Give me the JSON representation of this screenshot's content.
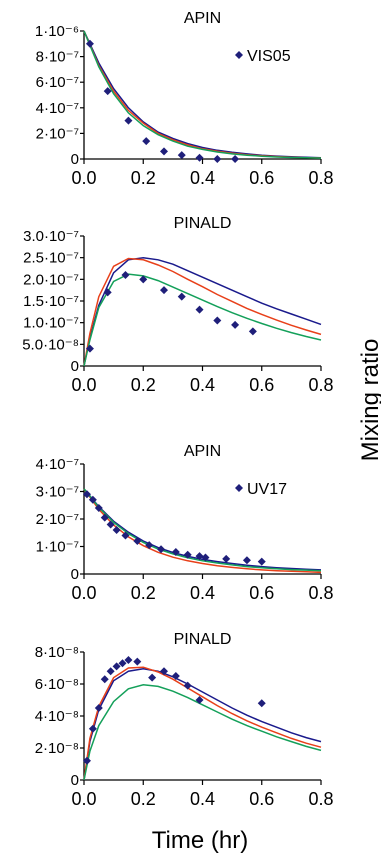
{
  "figure": {
    "xlabel": "Time (hr)",
    "ylabel": "Mixing ratio"
  },
  "chart_data": [
    {
      "type": "scatter",
      "title": "APIN",
      "legend_label": "VIS05",
      "legend_position": "top-right",
      "xlabel": "Time (hr)",
      "ylabel": "Mixing ratio",
      "xlim": [
        0,
        0.8
      ],
      "ylim": [
        0,
        1e-06
      ],
      "xticks": [
        0,
        0.2,
        0.4,
        0.6,
        0.8
      ],
      "xtick_labels": [
        "0.0",
        "0.2",
        "0.4",
        "0.6",
        "0.8"
      ],
      "yticks": [
        0,
        2e-07,
        4e-07,
        6e-07,
        8e-07,
        1e-06
      ],
      "ytick_labels": [
        "0",
        "2·10⁻⁷",
        "4·10⁻⁷",
        "6·10⁻⁷",
        "8·10⁻⁷",
        "1·10⁻⁶"
      ],
      "grid": false,
      "points": {
        "x": [
          0.02,
          0.08,
          0.15,
          0.21,
          0.27,
          0.33,
          0.39,
          0.45,
          0.51
        ],
        "y": [
          9e-07,
          5.3e-07,
          3e-07,
          1.4e-07,
          6e-08,
          3e-08,
          1e-08,
          0.0,
          0.0
        ]
      },
      "marker_color": "#1f1f7a",
      "series": [
        {
          "color": "#1a1a8c",
          "x": [
            0,
            0.05,
            0.1,
            0.15,
            0.2,
            0.25,
            0.3,
            0.35,
            0.4,
            0.45,
            0.5,
            0.55,
            0.6,
            0.65,
            0.7,
            0.75,
            0.8
          ],
          "y": [
            1e-06,
            7.5e-07,
            5.5e-07,
            4e-07,
            2.9e-07,
            2.1e-07,
            1.6e-07,
            1.2e-07,
            9e-08,
            6.8e-08,
            5.2e-08,
            4e-08,
            3e-08,
            2.3e-08,
            1.8e-08,
            1.3e-08,
            1e-08
          ]
        },
        {
          "color": "#e8401a",
          "x": [
            0,
            0.05,
            0.1,
            0.15,
            0.2,
            0.25,
            0.3,
            0.35,
            0.4,
            0.45,
            0.5,
            0.55,
            0.6,
            0.65,
            0.7,
            0.75,
            0.8
          ],
          "y": [
            1e-06,
            7.3e-07,
            5.3e-07,
            3.8e-07,
            2.8e-07,
            2e-07,
            1.5e-07,
            1.1e-07,
            8e-08,
            6e-08,
            4.5e-08,
            3.3e-08,
            2.5e-08,
            1.9e-08,
            1.4e-08,
            1e-08,
            8e-09
          ]
        },
        {
          "color": "#14a05a",
          "x": [
            0,
            0.05,
            0.1,
            0.15,
            0.2,
            0.25,
            0.3,
            0.35,
            0.4,
            0.45,
            0.5,
            0.55,
            0.6,
            0.65,
            0.7,
            0.75,
            0.8
          ],
          "y": [
            1e-06,
            7.2e-07,
            5.1e-07,
            3.6e-07,
            2.6e-07,
            1.9e-07,
            1.4e-07,
            1e-07,
            7.5e-08,
            5.5e-08,
            4e-08,
            3e-08,
            2.2e-08,
            1.6e-08,
            1.2e-08,
            9e-09,
            7e-09
          ]
        }
      ]
    },
    {
      "type": "scatter",
      "title": "PINALD",
      "legend_label": "",
      "xlabel": "Time (hr)",
      "ylabel": "Mixing ratio",
      "xlim": [
        0,
        0.8
      ],
      "ylim": [
        0,
        3e-07
      ],
      "xticks": [
        0,
        0.2,
        0.4,
        0.6,
        0.8
      ],
      "xtick_labels": [
        "0.0",
        "0.2",
        "0.4",
        "0.6",
        "0.8"
      ],
      "yticks": [
        0,
        5e-08,
        1e-07,
        1.5e-07,
        2e-07,
        2.5e-07,
        3e-07
      ],
      "ytick_labels": [
        "0",
        "5.0·10⁻⁸",
        "1.0·10⁻⁷",
        "1.5·10⁻⁷",
        "2.0·10⁻⁷",
        "2.5·10⁻⁷",
        "3.0·10⁻⁷"
      ],
      "grid": false,
      "points": {
        "x": [
          0.02,
          0.08,
          0.14,
          0.2,
          0.27,
          0.33,
          0.39,
          0.45,
          0.51,
          0.57
        ],
        "y": [
          4e-08,
          1.7e-07,
          2.1e-07,
          2e-07,
          1.75e-07,
          1.6e-07,
          1.3e-07,
          1.05e-07,
          9.5e-08,
          8e-08
        ]
      },
      "marker_color": "#1f1f7a",
      "series": [
        {
          "color": "#1a1a8c",
          "x": [
            0,
            0.02,
            0.05,
            0.1,
            0.15,
            0.2,
            0.25,
            0.3,
            0.35,
            0.4,
            0.45,
            0.5,
            0.55,
            0.6,
            0.65,
            0.7,
            0.75,
            0.8
          ],
          "y": [
            0,
            6.5e-08,
            1.4e-07,
            2.15e-07,
            2.45e-07,
            2.5e-07,
            2.45e-07,
            2.35e-07,
            2.2e-07,
            2.05e-07,
            1.9e-07,
            1.75e-07,
            1.6e-07,
            1.45e-07,
            1.32e-07,
            1.2e-07,
            1.08e-07,
            9.6e-08
          ]
        },
        {
          "color": "#e8401a",
          "x": [
            0,
            0.02,
            0.05,
            0.1,
            0.15,
            0.2,
            0.25,
            0.3,
            0.35,
            0.4,
            0.45,
            0.5,
            0.55,
            0.6,
            0.65,
            0.7,
            0.75,
            0.8
          ],
          "y": [
            0,
            7.5e-08,
            1.6e-07,
            2.3e-07,
            2.48e-07,
            2.45e-07,
            2.33e-07,
            2.18e-07,
            2e-07,
            1.83e-07,
            1.65e-07,
            1.49e-07,
            1.33e-07,
            1.19e-07,
            1.06e-07,
            9.4e-08,
            8.3e-08,
            7.3e-08
          ]
        },
        {
          "color": "#14a05a",
          "x": [
            0,
            0.02,
            0.05,
            0.1,
            0.15,
            0.2,
            0.25,
            0.3,
            0.35,
            0.4,
            0.45,
            0.5,
            0.55,
            0.6,
            0.65,
            0.7,
            0.75,
            0.8
          ],
          "y": [
            0,
            6e-08,
            1.35e-07,
            1.95e-07,
            2.12e-07,
            2.08e-07,
            1.97e-07,
            1.82e-07,
            1.67e-07,
            1.52e-07,
            1.37e-07,
            1.23e-07,
            1.1e-07,
            9.8e-08,
            8.7e-08,
            7.7e-08,
            6.8e-08,
            6e-08
          ]
        }
      ]
    },
    {
      "type": "scatter",
      "title": "APIN",
      "legend_label": "UV17",
      "legend_position": "top-right",
      "xlabel": "Time (hr)",
      "ylabel": "Mixing ratio",
      "xlim": [
        0,
        0.8
      ],
      "ylim": [
        0,
        4e-07
      ],
      "xticks": [
        0,
        0.2,
        0.4,
        0.6,
        0.8
      ],
      "xtick_labels": [
        "0.0",
        "0.2",
        "0.4",
        "0.6",
        "0.8"
      ],
      "yticks": [
        0,
        1e-07,
        2e-07,
        3e-07,
        4e-07
      ],
      "ytick_labels": [
        "0",
        "1·10⁻⁷",
        "2·10⁻⁷",
        "3·10⁻⁷",
        "4·10⁻⁷"
      ],
      "grid": false,
      "points": {
        "x": [
          0.01,
          0.03,
          0.05,
          0.07,
          0.09,
          0.11,
          0.14,
          0.18,
          0.22,
          0.26,
          0.31,
          0.35,
          0.39,
          0.41,
          0.48,
          0.55,
          0.6
        ],
        "y": [
          2.9e-07,
          2.7e-07,
          2.4e-07,
          2.05e-07,
          1.8e-07,
          1.6e-07,
          1.4e-07,
          1.2e-07,
          1.05e-07,
          9e-08,
          8e-08,
          7e-08,
          6.5e-08,
          6e-08,
          5.5e-08,
          5e-08,
          4.5e-08
        ]
      },
      "marker_color": "#1f1f7a",
      "series": [
        {
          "color": "#1a1a8c",
          "x": [
            0,
            0.05,
            0.1,
            0.15,
            0.2,
            0.25,
            0.3,
            0.35,
            0.4,
            0.45,
            0.5,
            0.55,
            0.6,
            0.65,
            0.7,
            0.75,
            0.8
          ],
          "y": [
            3.1e-07,
            2.45e-07,
            1.92e-07,
            1.52e-07,
            1.2e-07,
            9.6e-08,
            7.8e-08,
            6.4e-08,
            5.3e-08,
            4.5e-08,
            3.8e-08,
            3.2e-08,
            2.7e-08,
            2.3e-08,
            2e-08,
            1.7e-08,
            1.5e-08
          ]
        },
        {
          "color": "#e8401a",
          "x": [
            0,
            0.05,
            0.1,
            0.15,
            0.2,
            0.25,
            0.3,
            0.35,
            0.4,
            0.45,
            0.5,
            0.55,
            0.6,
            0.65,
            0.7,
            0.75,
            0.8
          ],
          "y": [
            3.1e-07,
            2.35e-07,
            1.78e-07,
            1.35e-07,
            1.03e-07,
            7.9e-08,
            6.1e-08,
            4.8e-08,
            3.8e-08,
            3e-08,
            2.4e-08,
            1.9e-08,
            1.5e-08,
            1.2e-08,
            1e-08,
            8e-09,
            6e-09
          ]
        },
        {
          "color": "#14a05a",
          "x": [
            0,
            0.05,
            0.1,
            0.15,
            0.2,
            0.25,
            0.3,
            0.35,
            0.4,
            0.45,
            0.5,
            0.55,
            0.6,
            0.65,
            0.7,
            0.75,
            0.8
          ],
          "y": [
            3.1e-07,
            2.42e-07,
            1.88e-07,
            1.47e-07,
            1.15e-07,
            9.1e-08,
            7.3e-08,
            5.9e-08,
            4.8e-08,
            4e-08,
            3.3e-08,
            2.7e-08,
            2.3e-08,
            1.9e-08,
            1.6e-08,
            1.4e-08,
            1.2e-08
          ]
        }
      ]
    },
    {
      "type": "scatter",
      "title": "PINALD",
      "legend_label": "",
      "xlabel": "Time (hr)",
      "ylabel": "Mixing ratio",
      "xlim": [
        0,
        0.8
      ],
      "ylim": [
        0,
        8e-08
      ],
      "xticks": [
        0,
        0.2,
        0.4,
        0.6,
        0.8
      ],
      "xtick_labels": [
        "0.0",
        "0.2",
        "0.4",
        "0.6",
        "0.8"
      ],
      "yticks": [
        0,
        2e-08,
        4e-08,
        6e-08,
        8e-08
      ],
      "ytick_labels": [
        "0",
        "2·10⁻⁸",
        "4·10⁻⁸",
        "6·10⁻⁸",
        "8·10⁻⁸"
      ],
      "grid": false,
      "points": {
        "x": [
          0.01,
          0.03,
          0.05,
          0.07,
          0.09,
          0.11,
          0.13,
          0.15,
          0.18,
          0.23,
          0.27,
          0.31,
          0.35,
          0.39,
          0.6
        ],
        "y": [
          1.2e-08,
          3.2e-08,
          4.5e-08,
          6.3e-08,
          6.8e-08,
          7.1e-08,
          7.3e-08,
          7.5e-08,
          7.4e-08,
          6.4e-08,
          6.8e-08,
          6.5e-08,
          5.9e-08,
          5e-08,
          4.8e-08
        ]
      },
      "marker_color": "#1f1f7a",
      "series": [
        {
          "color": "#1a1a8c",
          "x": [
            0,
            0.02,
            0.05,
            0.1,
            0.15,
            0.2,
            0.25,
            0.3,
            0.35,
            0.4,
            0.45,
            0.5,
            0.55,
            0.6,
            0.65,
            0.7,
            0.75,
            0.8
          ],
          "y": [
            0,
            2.4e-08,
            4.4e-08,
            6.2e-08,
            6.8e-08,
            6.95e-08,
            6.8e-08,
            6.45e-08,
            6e-08,
            5.5e-08,
            5e-08,
            4.5e-08,
            4.05e-08,
            3.65e-08,
            3.3e-08,
            2.95e-08,
            2.65e-08,
            2.4e-08
          ]
        },
        {
          "color": "#e8401a",
          "x": [
            0,
            0.02,
            0.05,
            0.1,
            0.15,
            0.2,
            0.25,
            0.3,
            0.35,
            0.4,
            0.45,
            0.5,
            0.55,
            0.6,
            0.65,
            0.7,
            0.75,
            0.8
          ],
          "y": [
            0,
            2.6e-08,
            4.6e-08,
            6.4e-08,
            7e-08,
            7.05e-08,
            6.75e-08,
            6.3e-08,
            5.75e-08,
            5.2e-08,
            4.65e-08,
            4.15e-08,
            3.7e-08,
            3.3e-08,
            2.95e-08,
            2.6e-08,
            2.3e-08,
            2.05e-08
          ]
        },
        {
          "color": "#14a05a",
          "x": [
            0,
            0.02,
            0.05,
            0.1,
            0.15,
            0.2,
            0.25,
            0.3,
            0.35,
            0.4,
            0.45,
            0.5,
            0.55,
            0.6,
            0.65,
            0.7,
            0.75,
            0.8
          ],
          "y": [
            0,
            1.8e-08,
            3.4e-08,
            4.9e-08,
            5.7e-08,
            5.95e-08,
            5.85e-08,
            5.55e-08,
            5.15e-08,
            4.7e-08,
            4.25e-08,
            3.8e-08,
            3.4e-08,
            3.05e-08,
            2.7e-08,
            2.4e-08,
            2.1e-08,
            1.85e-08
          ]
        }
      ]
    }
  ]
}
